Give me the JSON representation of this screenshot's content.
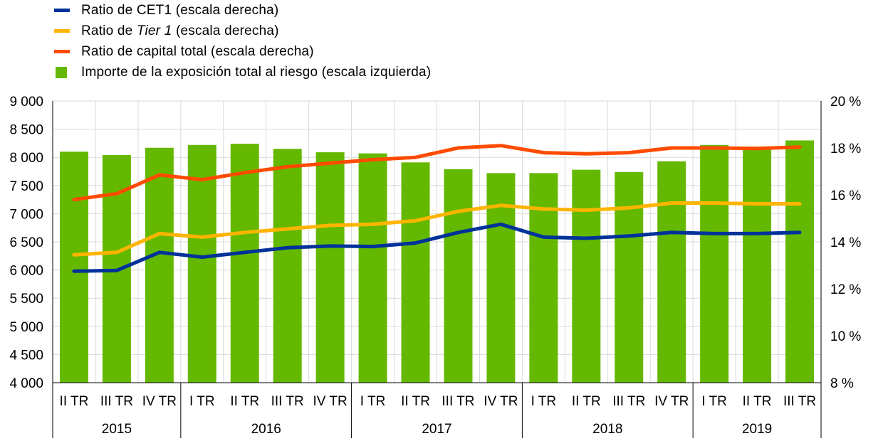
{
  "legend": [
    {
      "pre": "Ratio de CET1 (escala derecha)",
      "ital": "",
      "post": "",
      "color": "#003299",
      "kind": "line"
    },
    {
      "pre": "Ratio de ",
      "ital": "Tier 1",
      "post": " (escala derecha)",
      "color": "#FFB400",
      "kind": "line"
    },
    {
      "pre": "Ratio de capital total (escala derecha)",
      "ital": "",
      "post": "",
      "color": "#FF4B00",
      "kind": "line"
    },
    {
      "pre": "Importe de la exposición total al riesgo (escala izquierda)",
      "ital": "",
      "post": "",
      "color": "#65B800",
      "kind": "bar"
    }
  ],
  "chart_data": {
    "type": "bar",
    "categories": [
      "II TR",
      "III TR",
      "IV TR",
      "I TR",
      "II TR",
      "III TR",
      "IV TR",
      "I TR",
      "II TR",
      "III TR",
      "IV TR",
      "I TR",
      "II TR",
      "III TR",
      "IV TR",
      "I TR",
      "II TR",
      "III TR"
    ],
    "years": [
      {
        "label": "2015",
        "count": 3
      },
      {
        "label": "2016",
        "count": 4
      },
      {
        "label": "2017",
        "count": 4
      },
      {
        "label": "2018",
        "count": 4
      },
      {
        "label": "2019",
        "count": 3
      }
    ],
    "bars": {
      "name": "Importe de la exposición total al riesgo (escala izquierda)",
      "axis": "left",
      "color": "#65B800",
      "values": [
        8100,
        8040,
        8170,
        8220,
        8240,
        8150,
        8090,
        8070,
        7910,
        7790,
        7720,
        7720,
        7780,
        7740,
        7930,
        8220,
        8190,
        8300
      ]
    },
    "series": [
      {
        "name": "Ratio de capital total (escala derecha)",
        "axis": "right",
        "color": "#FF4B00",
        "values": [
          15.8,
          16.05,
          16.85,
          16.65,
          16.95,
          17.2,
          17.35,
          17.5,
          17.6,
          18.0,
          18.1,
          17.8,
          17.75,
          17.8,
          18.0,
          18.0,
          17.98,
          18.04
        ]
      },
      {
        "name": "Ratio de Tier 1 (escala derecha)",
        "axis": "right",
        "color": "#FFB400",
        "values": [
          13.45,
          13.55,
          14.35,
          14.2,
          14.4,
          14.55,
          14.7,
          14.75,
          14.9,
          15.3,
          15.55,
          15.4,
          15.35,
          15.45,
          15.65,
          15.65,
          15.62,
          15.62
        ]
      },
      {
        "name": "Ratio de CET1 (escala derecha)",
        "axis": "right",
        "color": "#003299",
        "values": [
          12.75,
          12.78,
          13.55,
          13.35,
          13.55,
          13.75,
          13.82,
          13.8,
          13.95,
          14.4,
          14.75,
          14.2,
          14.15,
          14.25,
          14.4,
          14.35,
          14.35,
          14.4
        ]
      }
    ],
    "ylim_left": [
      4000,
      9000
    ],
    "yticks_left": [
      "4 000",
      "4 500",
      "5 000",
      "5 500",
      "6 000",
      "6 500",
      "7 000",
      "7 500",
      "8 000",
      "8 500",
      "9 000"
    ],
    "ylim_right": [
      8,
      20
    ],
    "yticks_right": [
      "8 %",
      "10 %",
      "12 %",
      "14 %",
      "16 %",
      "18 %",
      "20 %"
    ],
    "grid": true,
    "legend_position": "top-left"
  }
}
